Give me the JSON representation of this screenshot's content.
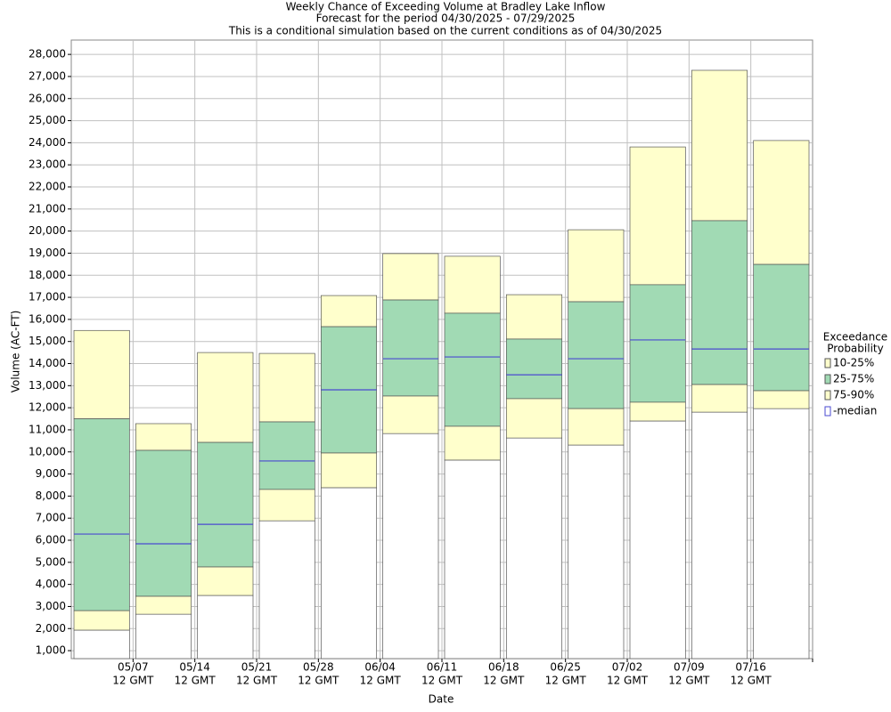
{
  "chart_data": {
    "type": "floating-bar",
    "title": [
      "Weekly Chance of Exceeding Volume at Bradley Lake Inflow",
      "Forecast for the period 04/30/2025 - 07/29/2025",
      "This is a conditional simulation based on the current conditions as of 04/30/2025"
    ],
    "x_label": "Date",
    "y_label": "Volume (AC-FT)",
    "legend_title": [
      "Exceedance",
      "Probability"
    ],
    "xticks": [
      [
        "05/07",
        "12 GMT"
      ],
      [
        "05/14",
        "12 GMT"
      ],
      [
        "05/21",
        "12 GMT"
      ],
      [
        "05/28",
        "12 GMT"
      ],
      [
        "06/04",
        "12 GMT"
      ],
      [
        "06/11",
        "12 GMT"
      ],
      [
        "06/18",
        "12 GMT"
      ],
      [
        "06/25",
        "12 GMT"
      ],
      [
        "07/02",
        "12 GMT"
      ],
      [
        "07/09",
        "12 GMT"
      ],
      [
        "07/16",
        "12 GMT"
      ]
    ],
    "ylim": [
      640,
      28650
    ],
    "yticks": [
      {
        "value": 1000,
        "label": "1,000"
      },
      {
        "value": 2000,
        "label": "2,000"
      },
      {
        "value": 3000,
        "label": "3,000"
      },
      {
        "value": 4000,
        "label": "4,000"
      },
      {
        "value": 5000,
        "label": "5,000"
      },
      {
        "value": 6000,
        "label": "6,000"
      },
      {
        "value": 7000,
        "label": "7,000"
      },
      {
        "value": 8000,
        "label": "8,000"
      },
      {
        "value": 9000,
        "label": "9,000"
      },
      {
        "value": 10000,
        "label": "10,000"
      },
      {
        "value": 11000,
        "label": "11,000"
      },
      {
        "value": 12000,
        "label": "12,000"
      },
      {
        "value": 13000,
        "label": "13,000"
      },
      {
        "value": 14000,
        "label": "14,000"
      },
      {
        "value": 15000,
        "label": "15,000"
      },
      {
        "value": 16000,
        "label": "16,000"
      },
      {
        "value": 17000,
        "label": "17,000"
      },
      {
        "value": 18000,
        "label": "18,000"
      },
      {
        "value": 19000,
        "label": "19,000"
      },
      {
        "value": 20000,
        "label": "20,000"
      },
      {
        "value": 21000,
        "label": "21,000"
      },
      {
        "value": 22000,
        "label": "22,000"
      },
      {
        "value": 23000,
        "label": "23,000"
      },
      {
        "value": 24000,
        "label": "24,000"
      },
      {
        "value": 25000,
        "label": "25,000"
      },
      {
        "value": 26000,
        "label": "26,000"
      },
      {
        "value": 27000,
        "label": "27,000"
      },
      {
        "value": 28000,
        "label": "28,000"
      }
    ],
    "grid": true,
    "series": [
      {
        "name": "10-25%",
        "color": "#ffffcc",
        "high": [
          15500,
          11280,
          14500,
          14460,
          17080,
          18980,
          18860,
          17120,
          20060,
          23810,
          27280,
          24100
        ],
        "low": [
          11500,
          10070,
          10430,
          11360,
          15670,
          16880,
          16280,
          15110,
          16800,
          17570,
          20470,
          18490
        ]
      },
      {
        "name": "25-75%",
        "color": "#a1dab4",
        "high": [
          11500,
          10070,
          10430,
          11360,
          15670,
          16880,
          16280,
          15110,
          16800,
          17570,
          20470,
          18490
        ],
        "low": [
          2810,
          3460,
          4790,
          8300,
          9950,
          12530,
          11160,
          12410,
          11960,
          12250,
          13050,
          12770
        ]
      },
      {
        "name": "75-90%",
        "color": "#ffffcc",
        "high": [
          2810,
          3460,
          4790,
          8300,
          9950,
          12530,
          11160,
          12410,
          11960,
          12250,
          13050,
          12770
        ],
        "low": [
          1930,
          2650,
          3500,
          6880,
          8380,
          10830,
          9630,
          10630,
          10310,
          11400,
          11800,
          11960
        ]
      },
      {
        "name": "-median",
        "color": "#4a4ad0",
        "values": [
          6280,
          5840,
          6720,
          9590,
          12810,
          14220,
          14300,
          13490,
          14220,
          15070,
          14660,
          14660
        ]
      }
    ]
  }
}
